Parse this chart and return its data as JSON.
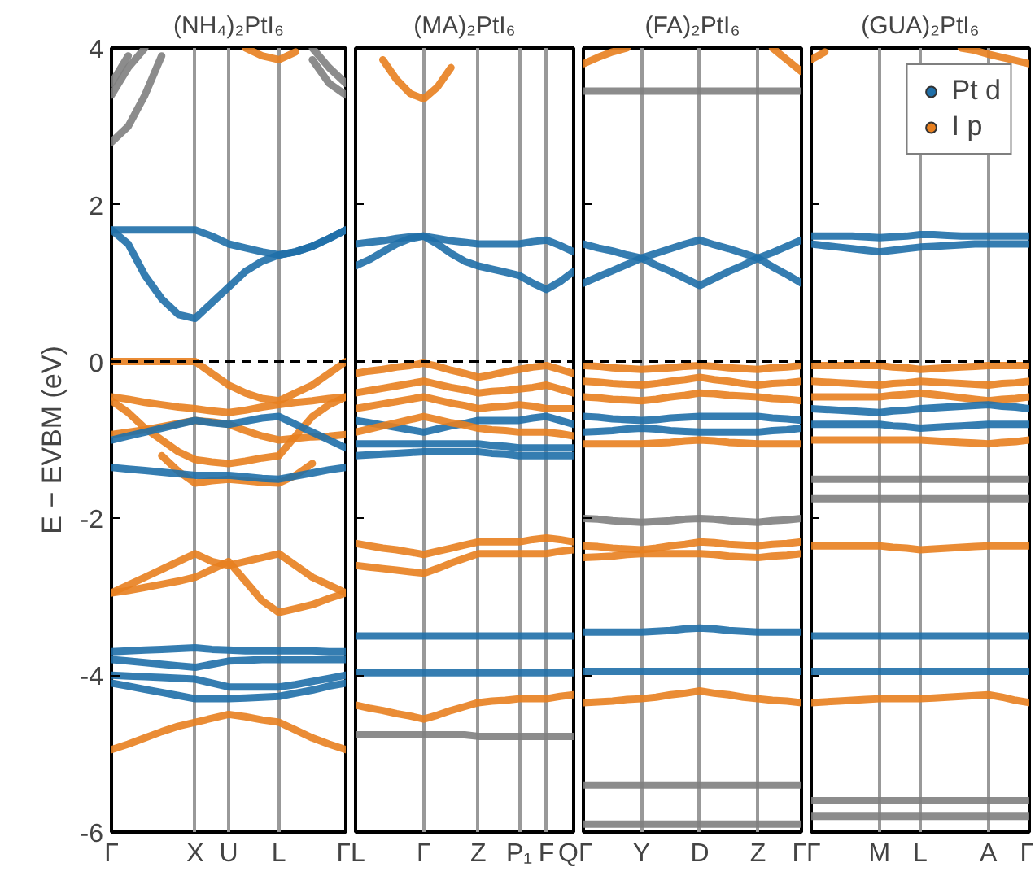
{
  "chart_data": [
    {
      "type": "line",
      "title": "(NH₄)₂PtI₆",
      "ylabel": "E − EVBM (eV)",
      "ylim": [
        -6,
        4
      ],
      "yticks": [
        -6,
        -4,
        -2,
        0,
        2,
        4
      ],
      "grid": "x",
      "ref_lines": [
        {
          "axis": "y",
          "value": 0,
          "label": null,
          "color": "#000000",
          "line_style": "dashed"
        }
      ],
      "categories": [
        "Γ",
        null,
        null,
        null,
        null,
        "X",
        null,
        "U",
        null,
        null,
        "L",
        null,
        null,
        null,
        "Γ"
      ],
      "series": [
        {
          "color": "#7f7f7f",
          "values": [
            2.8,
            3.0,
            3.4,
            3.9,
            null,
            null,
            null,
            null,
            null,
            null,
            null,
            null,
            null,
            null,
            null
          ]
        },
        {
          "color": "#7f7f7f",
          "values": [
            3.4,
            3.75,
            4.0,
            null,
            null,
            null,
            null,
            null,
            null,
            null,
            null,
            null,
            null,
            null,
            null
          ]
        },
        {
          "color": "#7f7f7f",
          "values": [
            3.55,
            3.9,
            null,
            null,
            null,
            null,
            null,
            null,
            null,
            null,
            null,
            null,
            null,
            null,
            null
          ]
        },
        {
          "color": "#7f7f7f",
          "values": [
            null,
            null,
            null,
            null,
            null,
            null,
            null,
            null,
            null,
            null,
            null,
            null,
            3.85,
            3.55,
            3.4
          ]
        },
        {
          "color": "#7f7f7f",
          "values": [
            null,
            null,
            null,
            null,
            null,
            null,
            null,
            null,
            null,
            null,
            null,
            null,
            4.0,
            3.75,
            3.55
          ]
        },
        {
          "color": "#e8801f",
          "values": [
            null,
            null,
            null,
            null,
            null,
            null,
            null,
            null,
            4.0,
            3.9,
            3.85,
            3.95,
            null,
            null,
            null
          ]
        },
        {
          "color": "#1f6fa8",
          "values": [
            1.68,
            1.68,
            1.68,
            1.68,
            1.68,
            1.68,
            1.6,
            1.5,
            1.45,
            1.4,
            1.36,
            1.4,
            1.47,
            1.57,
            1.68
          ]
        },
        {
          "color": "#1f6fa8",
          "values": [
            1.68,
            1.5,
            1.1,
            0.8,
            0.6,
            0.55,
            0.75,
            0.95,
            1.15,
            1.28,
            1.36,
            1.4,
            1.47,
            1.57,
            1.68
          ]
        },
        {
          "color": "#e8801f",
          "values": [
            0,
            0,
            0,
            0,
            0,
            0,
            -0.15,
            -0.3,
            -0.4,
            -0.47,
            -0.5,
            -0.4,
            -0.3,
            -0.15,
            0
          ]
        },
        {
          "color": "#e8801f",
          "values": [
            -0.45,
            -0.48,
            -0.52,
            -0.55,
            -0.58,
            -0.6,
            -0.63,
            -0.65,
            -0.62,
            -0.58,
            -0.55,
            -0.52,
            -0.5,
            -0.47,
            -0.45
          ]
        },
        {
          "color": "#e8801f",
          "values": [
            -0.93,
            -0.9,
            -0.87,
            -0.83,
            -0.79,
            -0.75,
            -0.77,
            -0.8,
            -0.88,
            -0.95,
            -1.0,
            -0.98,
            -0.96,
            -0.95,
            -0.93
          ]
        },
        {
          "color": "#e8801f",
          "values": [
            -0.5,
            -0.65,
            -0.85,
            -1.0,
            -1.15,
            -1.25,
            -1.28,
            -1.3,
            -1.27,
            -1.23,
            -1.2,
            -0.95,
            -0.7,
            -0.55,
            -0.45
          ]
        },
        {
          "color": "#e8801f",
          "values": [
            null,
            null,
            null,
            -1.2,
            -1.4,
            -1.55,
            -1.52,
            -1.5,
            -1.52,
            -1.54,
            -1.55,
            -1.45,
            -1.3,
            null,
            null
          ]
        },
        {
          "color": "#1f6fa8",
          "values": [
            -1.0,
            -0.95,
            -0.9,
            -0.85,
            -0.8,
            -0.75,
            -0.78,
            -0.8,
            -0.76,
            -0.72,
            -0.7,
            -0.8,
            -0.9,
            -1.0,
            -1.1
          ]
        },
        {
          "color": "#1f6fa8",
          "values": [
            -1.35,
            -1.37,
            -1.39,
            -1.41,
            -1.43,
            -1.45,
            -1.45,
            -1.45,
            -1.47,
            -1.49,
            -1.5,
            -1.46,
            -1.42,
            -1.38,
            -1.35
          ]
        },
        {
          "color": "#e8801f",
          "values": [
            -2.95,
            -2.85,
            -2.75,
            -2.65,
            -2.55,
            -2.45,
            -2.55,
            -2.6,
            -2.55,
            -2.5,
            -2.45,
            -2.6,
            -2.75,
            -2.85,
            -2.95
          ]
        },
        {
          "color": "#e8801f",
          "values": [
            -2.95,
            -2.92,
            -2.88,
            -2.84,
            -2.8,
            -2.75,
            -2.65,
            -2.55,
            -2.8,
            -3.05,
            -3.2,
            -3.15,
            -3.1,
            -3.02,
            -2.95
          ]
        },
        {
          "color": "#1f6fa8",
          "values": [
            -3.7,
            -3.69,
            -3.68,
            -3.67,
            -3.66,
            -3.65,
            -3.67,
            -3.68,
            -3.69,
            -3.69,
            -3.69,
            -3.69,
            -3.69,
            -3.7,
            -3.7
          ]
        },
        {
          "color": "#1f6fa8",
          "values": [
            -3.8,
            -3.82,
            -3.84,
            -3.86,
            -3.88,
            -3.9,
            -3.86,
            -3.82,
            -3.81,
            -3.8,
            -3.8,
            -3.8,
            -3.8,
            -3.8,
            -3.8
          ]
        },
        {
          "color": "#1f6fa8",
          "values": [
            -4.0,
            -4.01,
            -4.02,
            -4.03,
            -4.04,
            -4.05,
            -4.1,
            -4.15,
            -4.15,
            -4.15,
            -4.15,
            -4.12,
            -4.08,
            -4.04,
            -4.0
          ]
        },
        {
          "color": "#1f6fa8",
          "values": [
            -4.1,
            -4.14,
            -4.18,
            -4.22,
            -4.26,
            -4.3,
            -4.3,
            -4.3,
            -4.29,
            -4.28,
            -4.27,
            -4.23,
            -4.19,
            -4.14,
            -4.1
          ]
        },
        {
          "color": "#e8801f",
          "values": [
            -4.95,
            -4.88,
            -4.8,
            -4.72,
            -4.65,
            -4.6,
            -4.55,
            -4.5,
            -4.53,
            -4.57,
            -4.6,
            -4.7,
            -4.8,
            -4.88,
            -4.95
          ]
        }
      ]
    },
    {
      "type": "line",
      "title": "(MA)₂PtI₆",
      "tick_labels": "x",
      "ylim": [
        -6,
        4
      ],
      "yticks": [
        -6,
        -4,
        -2,
        0,
        2,
        4
      ],
      "grid": "x",
      "ref_lines": [
        {
          "axis": "y",
          "value": 0,
          "label": null,
          "color": "#000000",
          "line_style": "dashed"
        }
      ],
      "categories": [
        "L",
        null,
        null,
        null,
        null,
        "Γ",
        null,
        null,
        null,
        "Z",
        null,
        null,
        "P₁",
        null,
        "F",
        null,
        "Q"
      ],
      "series": [
        {
          "color": "#e8801f",
          "values": [
            null,
            null,
            3.85,
            3.6,
            3.42,
            3.35,
            3.5,
            3.75,
            null,
            null,
            null,
            null,
            null,
            null,
            null,
            null,
            null
          ]
        },
        {
          "color": "#1f6fa8",
          "values": [
            1.5,
            1.52,
            1.54,
            1.57,
            1.59,
            1.6,
            1.57,
            1.54,
            1.52,
            1.5,
            1.5,
            1.5,
            1.5,
            1.53,
            1.55,
            1.48,
            1.4
          ]
        },
        {
          "color": "#1f6fa8",
          "values": [
            1.22,
            1.3,
            1.4,
            1.5,
            1.57,
            1.6,
            1.5,
            1.38,
            1.28,
            1.22,
            1.18,
            1.14,
            1.1,
            1.0,
            0.92,
            1.02,
            1.15
          ]
        },
        {
          "color": "#e8801f",
          "values": [
            -0.15,
            -0.12,
            -0.1,
            -0.07,
            -0.05,
            -0.02,
            -0.06,
            -0.11,
            -0.15,
            -0.2,
            -0.17,
            -0.13,
            -0.1,
            -0.07,
            -0.05,
            -0.1,
            -0.15
          ]
        },
        {
          "color": "#e8801f",
          "values": [
            -0.4,
            -0.37,
            -0.34,
            -0.31,
            -0.28,
            -0.25,
            -0.29,
            -0.33,
            -0.36,
            -0.4,
            -0.38,
            -0.37,
            -0.35,
            -0.33,
            -0.3,
            -0.35,
            -0.4
          ]
        },
        {
          "color": "#e8801f",
          "values": [
            -0.6,
            -0.57,
            -0.54,
            -0.51,
            -0.48,
            -0.45,
            -0.49,
            -0.53,
            -0.56,
            -0.6,
            -0.58,
            -0.57,
            -0.55,
            -0.57,
            -0.6,
            -0.6,
            -0.6
          ]
        },
        {
          "color": "#1f6fa8",
          "values": [
            -0.75,
            -0.78,
            -0.81,
            -0.84,
            -0.87,
            -0.9,
            -0.86,
            -0.82,
            -0.79,
            -0.75,
            -0.75,
            -0.75,
            -0.75,
            -0.72,
            -0.7,
            -0.75,
            -0.8
          ]
        },
        {
          "color": "#e8801f",
          "values": [
            -0.9,
            -0.86,
            -0.82,
            -0.78,
            -0.74,
            -0.7,
            -0.74,
            -0.78,
            -0.81,
            -0.85,
            -0.87,
            -0.88,
            -0.9,
            -0.9,
            -0.9,
            -0.92,
            -0.95
          ]
        },
        {
          "color": "#1f6fa8",
          "values": [
            -1.05,
            -1.05,
            -1.05,
            -1.05,
            -1.05,
            -1.05,
            -1.05,
            -1.05,
            -1.05,
            -1.05,
            -1.07,
            -1.08,
            -1.1,
            -1.1,
            -1.1,
            -1.1,
            -1.1
          ]
        },
        {
          "color": "#1f6fa8",
          "values": [
            -1.2,
            -1.19,
            -1.18,
            -1.17,
            -1.16,
            -1.15,
            -1.15,
            -1.15,
            -1.15,
            -1.15,
            -1.17,
            -1.18,
            -1.2,
            -1.2,
            -1.2,
            -1.2,
            -1.2
          ]
        },
        {
          "color": "#e8801f",
          "values": [
            -2.32,
            -2.35,
            -2.38,
            -2.4,
            -2.43,
            -2.46,
            -2.42,
            -2.38,
            -2.34,
            -2.3,
            -2.3,
            -2.3,
            -2.3,
            -2.27,
            -2.25,
            -2.27,
            -2.3
          ]
        },
        {
          "color": "#e8801f",
          "values": [
            -2.6,
            -2.62,
            -2.64,
            -2.66,
            -2.68,
            -2.7,
            -2.64,
            -2.57,
            -2.51,
            -2.45,
            -2.45,
            -2.45,
            -2.45,
            -2.45,
            -2.45,
            -2.42,
            -2.4
          ]
        },
        {
          "color": "#1f6fa8",
          "values": [
            -3.5,
            -3.5,
            -3.5,
            -3.5,
            -3.5,
            -3.5,
            -3.5,
            -3.5,
            -3.5,
            -3.5,
            -3.5,
            -3.5,
            -3.5,
            -3.5,
            -3.5,
            -3.5,
            -3.5
          ]
        },
        {
          "color": "#1f6fa8",
          "values": [
            -3.97,
            -3.97,
            -3.97,
            -3.97,
            -3.97,
            -3.97,
            -3.97,
            -3.97,
            -3.97,
            -3.97,
            -3.97,
            -3.97,
            -3.97,
            -3.97,
            -3.97,
            -3.97,
            -3.97
          ]
        },
        {
          "color": "#e8801f",
          "values": [
            -4.38,
            -4.42,
            -4.45,
            -4.49,
            -4.52,
            -4.56,
            -4.51,
            -4.45,
            -4.4,
            -4.35,
            -4.33,
            -4.32,
            -4.3,
            -4.3,
            -4.3,
            -4.27,
            -4.25
          ]
        },
        {
          "color": "#7f7f7f",
          "values": [
            -4.76,
            -4.76,
            -4.76,
            -4.76,
            -4.76,
            -4.76,
            -4.76,
            -4.76,
            -4.76,
            -4.78,
            -4.78,
            -4.78,
            -4.78,
            -4.78,
            -4.78,
            -4.78,
            -4.78
          ]
        }
      ]
    },
    {
      "type": "line",
      "title": "(FA)₂PtI₆",
      "tick_labels": "x",
      "ylim": [
        -6,
        4
      ],
      "yticks": [
        -6,
        -4,
        -2,
        0,
        2,
        4
      ],
      "grid": "x",
      "ref_lines": [
        {
          "axis": "y",
          "value": 0,
          "label": null,
          "color": "#000000",
          "line_style": "dashed"
        }
      ],
      "categories": [
        "Γ",
        null,
        null,
        null,
        "Y",
        null,
        null,
        null,
        "D",
        null,
        null,
        null,
        "Z",
        null,
        null,
        "Γ"
      ],
      "series": [
        {
          "color": "#7f7f7f",
          "values": [
            3.45,
            3.45,
            3.45,
            3.45,
            3.45,
            3.45,
            3.45,
            3.45,
            3.45,
            3.45,
            3.45,
            3.45,
            3.45,
            3.45,
            3.45,
            3.45
          ]
        },
        {
          "color": "#1f6fa8",
          "values": [
            1.5,
            1.45,
            1.41,
            1.36,
            1.32,
            1.38,
            1.44,
            1.5,
            1.55,
            1.49,
            1.44,
            1.38,
            1.32,
            1.39,
            1.47,
            1.55
          ]
        },
        {
          "color": "#1f6fa8",
          "values": [
            1.0,
            1.08,
            1.16,
            1.24,
            1.32,
            1.23,
            1.15,
            1.06,
            0.97,
            1.06,
            1.15,
            1.23,
            1.32,
            1.21,
            1.11,
            1.0
          ]
        },
        {
          "color": "#e8801f",
          "values": [
            -0.05,
            -0.06,
            -0.08,
            -0.09,
            -0.1,
            -0.09,
            -0.08,
            -0.06,
            -0.05,
            -0.06,
            -0.08,
            -0.09,
            -0.1,
            -0.08,
            -0.07,
            -0.05
          ]
        },
        {
          "color": "#e8801f",
          "values": [
            -0.25,
            -0.26,
            -0.28,
            -0.29,
            -0.3,
            -0.28,
            -0.25,
            -0.23,
            -0.2,
            -0.23,
            -0.25,
            -0.28,
            -0.3,
            -0.28,
            -0.27,
            -0.25
          ]
        },
        {
          "color": "#e8801f",
          "values": [
            -0.45,
            -0.46,
            -0.48,
            -0.49,
            -0.5,
            -0.48,
            -0.45,
            -0.43,
            -0.4,
            -0.41,
            -0.43,
            -0.44,
            -0.45,
            -0.47,
            -0.48,
            -0.5
          ]
        },
        {
          "color": "#1f6fa8",
          "values": [
            -0.7,
            -0.71,
            -0.73,
            -0.74,
            -0.75,
            -0.74,
            -0.72,
            -0.71,
            -0.7,
            -0.7,
            -0.7,
            -0.7,
            -0.7,
            -0.72,
            -0.73,
            -0.75
          ]
        },
        {
          "color": "#1f6fa8",
          "values": [
            -0.9,
            -0.89,
            -0.88,
            -0.86,
            -0.85,
            -0.86,
            -0.88,
            -0.89,
            -0.9,
            -0.9,
            -0.9,
            -0.9,
            -0.9,
            -0.88,
            -0.87,
            -0.85
          ]
        },
        {
          "color": "#e8801f",
          "values": [
            -1.05,
            -1.05,
            -1.05,
            -1.05,
            -1.05,
            -1.04,
            -1.03,
            -1.01,
            -1.0,
            -1.01,
            -1.03,
            -1.04,
            -1.05,
            -1.05,
            -1.05,
            -1.05
          ]
        },
        {
          "color": "#7f7f7f",
          "values": [
            -2.0,
            -2.01,
            -2.03,
            -2.04,
            -2.05,
            -2.04,
            -2.03,
            -2.01,
            -2.0,
            -2.01,
            -2.03,
            -2.04,
            -2.05,
            -2.03,
            -2.02,
            -2.0
          ]
        },
        {
          "color": "#e8801f",
          "values": [
            -2.35,
            -2.36,
            -2.38,
            -2.39,
            -2.4,
            -2.38,
            -2.35,
            -2.33,
            -2.3,
            -2.31,
            -2.33,
            -2.34,
            -2.35,
            -2.33,
            -2.32,
            -2.3
          ]
        },
        {
          "color": "#e8801f",
          "values": [
            -2.5,
            -2.49,
            -2.48,
            -2.46,
            -2.45,
            -2.45,
            -2.45,
            -2.45,
            -2.45,
            -2.46,
            -2.48,
            -2.49,
            -2.5,
            -2.48,
            -2.47,
            -2.45
          ]
        },
        {
          "color": "#1f6fa8",
          "values": [
            -3.45,
            -3.45,
            -3.45,
            -3.45,
            -3.45,
            -3.44,
            -3.43,
            -3.41,
            -3.4,
            -3.41,
            -3.43,
            -3.44,
            -3.45,
            -3.45,
            -3.45,
            -3.45
          ]
        },
        {
          "color": "#1f6fa8",
          "values": [
            -3.95,
            -3.95,
            -3.95,
            -3.95,
            -3.95,
            -3.95,
            -3.95,
            -3.95,
            -3.95,
            -3.95,
            -3.95,
            -3.95,
            -3.95,
            -3.95,
            -3.95,
            -3.95
          ]
        },
        {
          "color": "#e8801f",
          "values": [
            -4.35,
            -4.34,
            -4.33,
            -4.31,
            -4.3,
            -4.28,
            -4.25,
            -4.23,
            -4.2,
            -4.23,
            -4.25,
            -4.28,
            -4.3,
            -4.32,
            -4.33,
            -4.35
          ]
        },
        {
          "color": "#7f7f7f",
          "values": [
            -5.4,
            -5.4,
            -5.4,
            -5.4,
            -5.4,
            -5.4,
            -5.4,
            -5.4,
            -5.4,
            -5.4,
            -5.4,
            -5.4,
            -5.4,
            -5.4,
            -5.4,
            -5.4
          ]
        },
        {
          "color": "#7f7f7f",
          "values": [
            -5.9,
            -5.9,
            -5.9,
            -5.9,
            -5.9,
            -5.9,
            -5.9,
            -5.9,
            -5.9,
            -5.9,
            -5.9,
            -5.9,
            -5.9,
            -5.9,
            -5.9,
            -5.9
          ]
        },
        {
          "color": "#e8801f",
          "values": [
            3.8,
            3.88,
            3.95,
            4.0,
            null,
            null,
            null,
            null,
            null,
            null,
            null,
            null,
            null,
            null,
            null,
            null
          ]
        },
        {
          "color": "#e8801f",
          "values": [
            null,
            null,
            null,
            null,
            null,
            null,
            null,
            null,
            null,
            null,
            null,
            null,
            null,
            4.0,
            3.85,
            3.7
          ]
        }
      ]
    },
    {
      "type": "line",
      "title": "(GUA)₂PtI₆",
      "tick_labels": "x",
      "ylim": [
        -6,
        4
      ],
      "yticks": [
        -6,
        -4,
        -2,
        0,
        2,
        4
      ],
      "grid": "x",
      "legend": "top right",
      "ref_lines": [
        {
          "axis": "y",
          "value": 0,
          "label": null,
          "color": "#000000",
          "line_style": "dashed"
        }
      ],
      "categories": [
        "Γ",
        null,
        null,
        null,
        null,
        "M",
        null,
        null,
        "L",
        null,
        null,
        null,
        null,
        "A",
        null,
        null,
        "Γ"
      ],
      "series": [
        {
          "name": "Pt d",
          "color": "#1f6fa8",
          "values": [
            1.5,
            1.48,
            1.46,
            1.44,
            1.42,
            1.4,
            1.42,
            1.44,
            1.46,
            1.47,
            1.48,
            1.49,
            1.5,
            1.5,
            1.5,
            1.5,
            1.5
          ]
        },
        {
          "name": "I p",
          "color": "#e8801f",
          "values": [
            -0.05,
            -0.05,
            -0.05,
            -0.05,
            -0.05,
            -0.05,
            -0.07,
            -0.08,
            -0.1,
            -0.09,
            -0.08,
            -0.07,
            -0.06,
            -0.05,
            -0.05,
            -0.05,
            -0.05
          ]
        },
        {
          "color": "#e8801f",
          "values": [
            3.85,
            3.95,
            null,
            null,
            null,
            null,
            null,
            null,
            null,
            null,
            null,
            null,
            null,
            null,
            null,
            null,
            null
          ]
        },
        {
          "color": "#e8801f",
          "values": [
            null,
            null,
            null,
            null,
            null,
            null,
            null,
            null,
            null,
            null,
            null,
            4.0,
            3.97,
            3.92,
            3.88,
            3.84,
            3.8
          ]
        },
        {
          "color": "#1f6fa8",
          "values": [
            1.6,
            1.6,
            1.6,
            1.6,
            1.59,
            1.58,
            1.59,
            1.6,
            1.62,
            1.62,
            1.61,
            1.6,
            1.6,
            1.6,
            1.6,
            1.6,
            1.6
          ]
        },
        {
          "color": "#e8801f",
          "values": [
            -0.25,
            -0.26,
            -0.27,
            -0.28,
            -0.29,
            -0.3,
            -0.28,
            -0.27,
            -0.25,
            -0.26,
            -0.27,
            -0.28,
            -0.29,
            -0.3,
            -0.28,
            -0.27,
            -0.25
          ]
        },
        {
          "color": "#e8801f",
          "values": [
            -0.45,
            -0.45,
            -0.45,
            -0.45,
            -0.45,
            -0.45,
            -0.43,
            -0.42,
            -0.4,
            -0.42,
            -0.44,
            -0.46,
            -0.48,
            -0.5,
            -0.48,
            -0.47,
            -0.45
          ]
        },
        {
          "color": "#1f6fa8",
          "values": [
            -0.6,
            -0.61,
            -0.62,
            -0.63,
            -0.64,
            -0.65,
            -0.63,
            -0.62,
            -0.6,
            -0.59,
            -0.58,
            -0.57,
            -0.56,
            -0.55,
            -0.57,
            -0.58,
            -0.6
          ]
        },
        {
          "color": "#1f6fa8",
          "values": [
            -0.8,
            -0.8,
            -0.8,
            -0.8,
            -0.8,
            -0.8,
            -0.82,
            -0.83,
            -0.85,
            -0.84,
            -0.83,
            -0.82,
            -0.81,
            -0.8,
            -0.8,
            -0.8,
            -0.8
          ]
        },
        {
          "color": "#e8801f",
          "values": [
            -1.0,
            -1.0,
            -1.0,
            -1.0,
            -1.0,
            -1.0,
            -1.0,
            -1.0,
            -1.0,
            -1.01,
            -1.02,
            -1.03,
            -1.04,
            -1.05,
            -1.03,
            -1.02,
            -1.0
          ]
        },
        {
          "color": "#7f7f7f",
          "values": [
            -1.5,
            -1.5,
            -1.5,
            -1.5,
            -1.5,
            -1.5,
            -1.5,
            -1.5,
            -1.5,
            -1.5,
            -1.5,
            -1.5,
            -1.5,
            -1.5,
            -1.5,
            -1.5,
            -1.5
          ]
        },
        {
          "color": "#7f7f7f",
          "values": [
            -1.75,
            -1.75,
            -1.75,
            -1.75,
            -1.75,
            -1.75,
            -1.75,
            -1.75,
            -1.75,
            -1.75,
            -1.75,
            -1.75,
            -1.75,
            -1.75,
            -1.75,
            -1.75,
            -1.75
          ]
        },
        {
          "color": "#e8801f",
          "values": [
            -2.35,
            -2.35,
            -2.35,
            -2.35,
            -2.35,
            -2.35,
            -2.37,
            -2.38,
            -2.4,
            -2.39,
            -2.38,
            -2.37,
            -2.36,
            -2.35,
            -2.35,
            -2.35,
            -2.35
          ]
        },
        {
          "color": "#1f6fa8",
          "values": [
            -3.5,
            -3.5,
            -3.5,
            -3.5,
            -3.5,
            -3.5,
            -3.5,
            -3.5,
            -3.5,
            -3.5,
            -3.5,
            -3.5,
            -3.5,
            -3.5,
            -3.5,
            -3.5,
            -3.5
          ]
        },
        {
          "color": "#1f6fa8",
          "values": [
            -3.95,
            -3.95,
            -3.95,
            -3.95,
            -3.95,
            -3.95,
            -3.95,
            -3.95,
            -3.95,
            -3.95,
            -3.95,
            -3.95,
            -3.95,
            -3.95,
            -3.95,
            -3.95,
            -3.95
          ]
        },
        {
          "color": "#e8801f",
          "values": [
            -4.35,
            -4.34,
            -4.33,
            -4.32,
            -4.31,
            -4.3,
            -4.3,
            -4.3,
            -4.3,
            -4.29,
            -4.28,
            -4.27,
            -4.26,
            -4.25,
            -4.28,
            -4.32,
            -4.35
          ]
        },
        {
          "color": "#7f7f7f",
          "values": [
            -5.6,
            -5.6,
            -5.6,
            -5.6,
            -5.6,
            -5.6,
            -5.6,
            -5.6,
            -5.6,
            -5.6,
            -5.6,
            -5.6,
            -5.6,
            -5.6,
            -5.6,
            -5.6,
            -5.6
          ]
        },
        {
          "color": "#7f7f7f",
          "values": [
            -5.8,
            -5.8,
            -5.8,
            -5.8,
            -5.8,
            -5.8,
            -5.8,
            -5.8,
            -5.8,
            -5.8,
            -5.8,
            -5.8,
            -5.8,
            -5.8,
            -5.8,
            -5.8,
            -5.8
          ]
        }
      ]
    }
  ]
}
